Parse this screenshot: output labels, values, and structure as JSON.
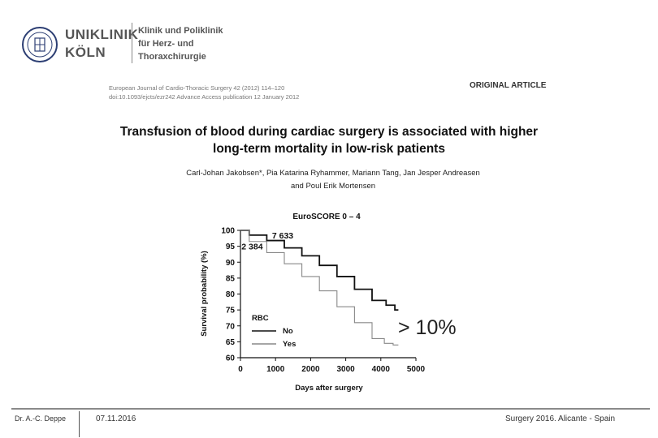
{
  "header": {
    "logo_line1": "UNIKLINIK",
    "logo_line2": "KÖLN",
    "clinic_line1": "Klinik und Poliklinik",
    "clinic_line2": "für Herz- und",
    "clinic_line3": "Thoraxchirurgie"
  },
  "article": {
    "journal_line1": "European Journal of Cardio-Thoracic Surgery 42 (2012) 114–120",
    "journal_line2": "doi:10.1093/ejcts/ezr242   Advance Access publication 12 January 2012",
    "type": "ORIGINAL ARTICLE",
    "title_line1": "Transfusion of blood during cardiac surgery is associated with higher",
    "title_line2": "long-term mortality in low-risk patients",
    "authors_line1": "Carl-Johan Jakobsen*, Pia Katarina Ryhammer, Mariann Tang, Jan Jesper Andreasen",
    "authors_line2": "and Poul Erik Mortensen"
  },
  "annotation": {
    "text": "> 10%"
  },
  "footer": {
    "author": "Dr. A.-C. Deppe",
    "date": "07.11.2016",
    "event": "Surgery 2016. Alicante - Spain"
  },
  "colors": {
    "accent": "#8a8a8a",
    "curve_no": "#111111",
    "curve_yes": "#888888"
  },
  "chart_data": {
    "type": "line",
    "title": "EuroSCORE 0 – 4",
    "xlabel": "Days after surgery",
    "ylabel": "Survival probability (%)",
    "xlim": [
      0,
      5000
    ],
    "ylim": [
      60,
      100
    ],
    "xticks": [
      "0",
      "1000",
      "2000",
      "3000",
      "4000",
      "5000"
    ],
    "yticks": [
      "60",
      "65",
      "70",
      "75",
      "80",
      "85",
      "90",
      "95",
      "100"
    ],
    "legend_title": "RBC",
    "series": [
      {
        "name": "No",
        "n_label": "7 633",
        "x": [
          0,
          500,
          1000,
          1500,
          2000,
          2500,
          3000,
          3500,
          4000,
          4300,
          4500
        ],
        "y": [
          100,
          98.5,
          96.8,
          94.5,
          92,
          89,
          85.5,
          81.5,
          78,
          76.5,
          75
        ]
      },
      {
        "name": "Yes",
        "n_label": "2 384",
        "x": [
          0,
          500,
          1000,
          1500,
          2000,
          2500,
          3000,
          3500,
          4000,
          4200,
          4500
        ],
        "y": [
          100,
          96.5,
          93,
          89.5,
          85.5,
          81,
          76,
          71,
          66,
          64.5,
          64
        ]
      }
    ]
  }
}
